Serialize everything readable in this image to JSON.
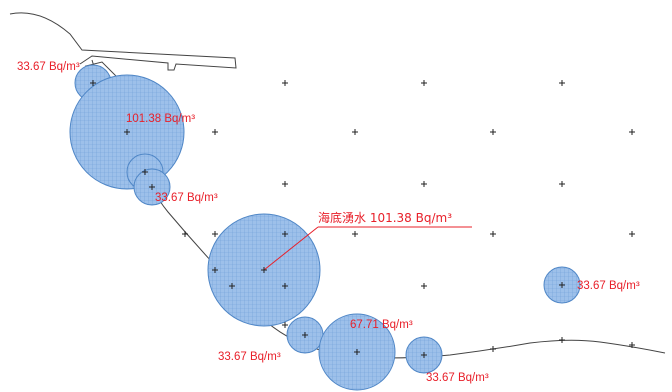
{
  "unit_suffix": "Bq/m³",
  "colors": {
    "label": "#e8202a",
    "circle_fill": "#9dc0ea",
    "circle_stroke": "#4f86c6",
    "grid": "#6f9fd8",
    "shoreline": "#444444"
  },
  "labels": {
    "l1": "33.67 Bq/m³",
    "l2": "101.38 Bq/m³",
    "l3": "33.67 Bq/m³",
    "l4": "海底湧水  101.38 Bq/m³",
    "l5": "33.67 Bq/m³",
    "l6": "67.71 Bq/m³",
    "l7": "33.67 Bq/m³",
    "l8": "33.67 Bq/m³",
    "l9": "33.67 Bq/m³"
  }
}
